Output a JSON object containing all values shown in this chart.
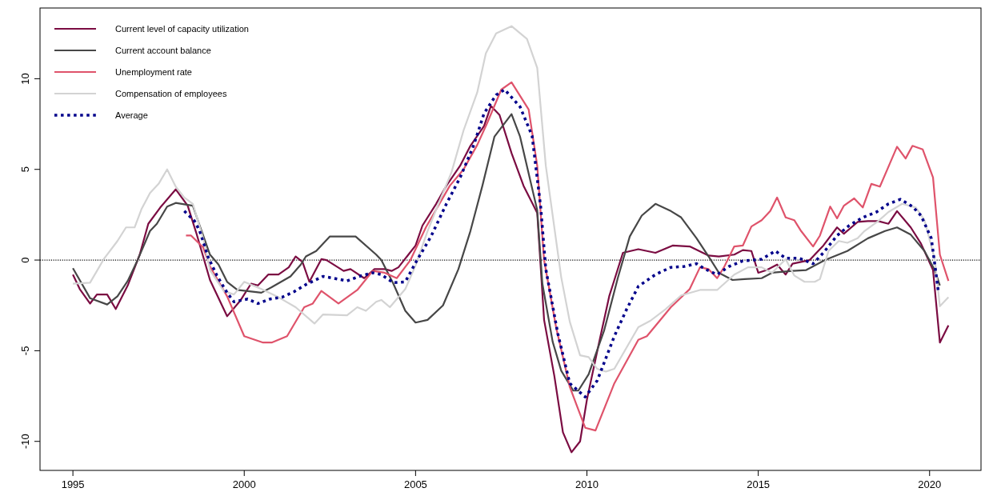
{
  "chart_data": {
    "type": "line",
    "xlim": [
      1994.04,
      2021.5
    ],
    "ylim": [
      -11.6,
      13.9
    ],
    "xticks": [
      1995,
      2000,
      2005,
      2010,
      2015,
      2020
    ],
    "yticks": [
      -10,
      -5,
      0,
      5,
      10
    ],
    "grid": false,
    "legend": "top left",
    "marker": "none",
    "ref_lines": [
      {
        "axis": "y",
        "value": 0,
        "color": "#000000",
        "line_style": "dotted"
      }
    ],
    "series": [
      {
        "name": "Current level of capacity utilization",
        "color": "#7b0c42",
        "line_style": "solid",
        "x": [
          1995.0,
          1995.2,
          1995.5,
          1995.7,
          1996.0,
          1996.25,
          1996.6,
          1996.95,
          1997.2,
          1997.55,
          1998.0,
          1998.35,
          1998.6,
          1999.0,
          1999.5,
          1999.9,
          2000.2,
          2000.4,
          2000.7,
          2001.0,
          2001.3,
          2001.5,
          2001.7,
          2001.9,
          2002.25,
          2002.4,
          2002.9,
          2003.1,
          2003.5,
          2003.8,
          2004.1,
          2004.3,
          2004.5,
          2005.0,
          2005.2,
          2005.6,
          2005.9,
          2006.3,
          2006.6,
          2007.0,
          2007.2,
          2007.45,
          2007.8,
          2008.15,
          2008.55,
          2008.75,
          2009.05,
          2009.3,
          2009.55,
          2009.8,
          2010.0,
          2010.35,
          2010.65,
          2011.05,
          2011.5,
          2012.0,
          2012.5,
          2013.0,
          2013.55,
          2013.85,
          2014.3,
          2014.55,
          2014.8,
          2015.0,
          2015.25,
          2015.55,
          2015.8,
          2016.0,
          2016.5,
          2016.9,
          2017.3,
          2017.5,
          2017.9,
          2018.2,
          2018.5,
          2018.8,
          2019.05,
          2019.45,
          2019.75,
          2020.1,
          2020.3,
          2020.55
        ],
        "values": [
          -0.8,
          -1.6,
          -2.4,
          -1.9,
          -1.9,
          -2.7,
          -1.4,
          0.3,
          2.0,
          2.9,
          3.9,
          3.0,
          1.5,
          -1.1,
          -3.1,
          -2.2,
          -1.3,
          -1.4,
          -0.8,
          -0.8,
          -0.4,
          0.2,
          -0.1,
          -1.2,
          0.05,
          0,
          -0.6,
          -0.5,
          -1.0,
          -0.5,
          -0.5,
          -0.6,
          -0.4,
          0.8,
          1.9,
          3.1,
          4.1,
          5.2,
          6.3,
          7.4,
          8.5,
          8.0,
          5.9,
          4.1,
          2.6,
          -3.3,
          -6.4,
          -9.5,
          -10.6,
          -10.0,
          -7.7,
          -4.6,
          -2.0,
          0.4,
          0.6,
          0.4,
          0.8,
          0.75,
          0.25,
          0.2,
          0.3,
          0.55,
          0.5,
          -0.7,
          -0.55,
          -0.25,
          -0.8,
          -0.2,
          0,
          0.8,
          1.8,
          1.45,
          2.1,
          2.15,
          2.15,
          2.0,
          2.7,
          1.8,
          0.9,
          -0.55,
          -4.55,
          -3.6
        ]
      },
      {
        "name": "Current account balance",
        "color": "#474747",
        "line_style": "solid",
        "x": [
          1995.0,
          1995.5,
          1996.0,
          1996.3,
          1996.6,
          1996.9,
          1997.25,
          1997.45,
          1997.75,
          1998.0,
          1998.5,
          1998.7,
          1999.0,
          1999.25,
          1999.5,
          1999.8,
          2000.5,
          2000.8,
          2001.35,
          2001.65,
          2001.8,
          2002.1,
          2002.5,
          2003.25,
          2003.85,
          2004.0,
          2004.35,
          2004.7,
          2005.0,
          2005.35,
          2005.8,
          2006.25,
          2006.6,
          2006.95,
          2007.3,
          2007.8,
          2008.05,
          2008.55,
          2008.7,
          2009.0,
          2009.25,
          2009.6,
          2009.75,
          2010.05,
          2010.5,
          2010.9,
          2011.25,
          2011.6,
          2012.0,
          2012.45,
          2012.75,
          2013.2,
          2013.55,
          2013.85,
          2014.25,
          2014.6,
          2015.1,
          2015.4,
          2016.0,
          2016.4,
          2016.95,
          2017.6,
          2018.2,
          2018.7,
          2019.05,
          2019.45,
          2019.85,
          2020.15,
          2020.3
        ],
        "values": [
          -0.45,
          -2.1,
          -2.45,
          -2.0,
          -1.15,
          0.05,
          1.6,
          2.0,
          2.95,
          3.15,
          3.0,
          1.9,
          0.3,
          -0.25,
          -1.2,
          -1.65,
          -1.8,
          -1.5,
          -0.9,
          -0.25,
          0.2,
          0.5,
          1.3,
          1.3,
          0.3,
          0,
          -1.3,
          -2.8,
          -3.45,
          -3.3,
          -2.5,
          -0.5,
          1.6,
          4.1,
          6.8,
          8.05,
          6.8,
          2.75,
          -1.3,
          -4.5,
          -6.1,
          -7.2,
          -7.2,
          -6.3,
          -3.9,
          -1.0,
          1.3,
          2.45,
          3.1,
          2.7,
          2.35,
          1.2,
          0.2,
          -0.7,
          -1.1,
          -1.05,
          -1.0,
          -0.7,
          -0.6,
          -0.55,
          0,
          0.5,
          1.2,
          1.6,
          1.8,
          1.4,
          0.5,
          -0.55,
          -1.4
        ]
      },
      {
        "name": "Unemployment rate",
        "color": "#df536b",
        "line_style": "solid",
        "x": [
          1998.3,
          1998.45,
          1998.8,
          1999.0,
          1999.5,
          2000.0,
          2000.55,
          2000.8,
          2001.25,
          2001.75,
          2002.0,
          2002.25,
          2002.75,
          2003.3,
          2003.75,
          2004.1,
          2004.45,
          2004.85,
          2005.3,
          2006.0,
          2006.4,
          2006.8,
          2007.1,
          2007.5,
          2007.8,
          2008.3,
          2008.55,
          2008.75,
          2009.1,
          2009.5,
          2009.95,
          2010.25,
          2010.8,
          2011.5,
          2011.75,
          2012.45,
          2013.0,
          2013.3,
          2013.55,
          2013.8,
          2014.0,
          2014.3,
          2014.55,
          2014.8,
          2015.1,
          2015.35,
          2015.55,
          2015.8,
          2016.05,
          2016.25,
          2016.6,
          2016.8,
          2017.1,
          2017.3,
          2017.5,
          2017.8,
          2018.05,
          2018.3,
          2018.55,
          2018.8,
          2019.05,
          2019.3,
          2019.5,
          2019.8,
          2020.1,
          2020.3,
          2020.55
        ],
        "values": [
          1.35,
          1.35,
          0.7,
          -0.35,
          -2.0,
          -4.2,
          -4.55,
          -4.55,
          -4.2,
          -2.6,
          -2.4,
          -1.7,
          -2.4,
          -1.65,
          -0.6,
          -0.7,
          -1.0,
          0,
          1.8,
          4.1,
          5.0,
          6.35,
          7.6,
          9.4,
          9.8,
          8.3,
          5.2,
          0,
          -3.7,
          -7.0,
          -9.25,
          -9.4,
          -6.8,
          -4.4,
          -4.2,
          -2.6,
          -1.6,
          -0.4,
          -0.5,
          -1.0,
          -0.4,
          0.75,
          0.8,
          1.85,
          2.2,
          2.7,
          3.45,
          2.35,
          2.2,
          1.6,
          0.75,
          1.35,
          2.95,
          2.3,
          3.0,
          3.4,
          2.9,
          4.2,
          4.05,
          5.15,
          6.25,
          5.6,
          6.3,
          6.1,
          4.55,
          0.3,
          -1.15
        ]
      },
      {
        "name": "Compensation of employees",
        "color": "#d3d3d3",
        "line_style": "solid",
        "x": [
          1995.0,
          1995.5,
          1995.9,
          1996.3,
          1996.55,
          1996.8,
          1997.0,
          1997.25,
          1997.5,
          1997.75,
          1998.0,
          1998.25,
          1998.5,
          1998.8,
          1999.0,
          1999.4,
          1999.7,
          2000.0,
          2000.5,
          2000.95,
          2001.5,
          2002.05,
          2002.3,
          2003.0,
          2003.3,
          2003.55,
          2003.85,
          2004.0,
          2004.25,
          2004.7,
          2005.0,
          2005.35,
          2005.7,
          2006.05,
          2006.4,
          2006.8,
          2007.05,
          2007.35,
          2007.8,
          2008.25,
          2008.55,
          2008.8,
          2009.25,
          2009.5,
          2009.8,
          2010.05,
          2010.3,
          2010.55,
          2010.8,
          2011.5,
          2011.85,
          2012.3,
          2012.75,
          2013.3,
          2013.8,
          2014.3,
          2014.7,
          2015.1,
          2015.4,
          2015.8,
          2016.05,
          2016.35,
          2016.65,
          2016.8,
          2017.05,
          2017.35,
          2017.6,
          2017.9,
          2018.1,
          2018.5,
          2018.8,
          2019.2,
          2019.6,
          2019.85,
          2020.15,
          2020.3,
          2020.55
        ],
        "values": [
          -1.3,
          -1.25,
          0.05,
          1.05,
          1.8,
          1.8,
          2.8,
          3.7,
          4.2,
          5.0,
          4.05,
          3.45,
          3.1,
          1.2,
          -0.55,
          -1.7,
          -1.9,
          -1.2,
          -1.6,
          -2.0,
          -2.6,
          -3.5,
          -3.0,
          -3.05,
          -2.6,
          -2.8,
          -2.3,
          -2.2,
          -2.6,
          -1.6,
          -0.3,
          1.6,
          3.25,
          4.85,
          7.15,
          9.25,
          11.4,
          12.5,
          12.9,
          12.2,
          10.6,
          5.2,
          -0.95,
          -3.4,
          -5.25,
          -5.35,
          -6.0,
          -6.15,
          -6.0,
          -3.7,
          -3.35,
          -2.7,
          -1.95,
          -1.65,
          -1.65,
          -0.8,
          -0.4,
          -0.4,
          -0.7,
          0.05,
          -0.85,
          -1.2,
          -1.2,
          -1.05,
          0.5,
          1.05,
          0.95,
          1.2,
          1.6,
          2.15,
          2.65,
          3.1,
          2.9,
          2.2,
          0.05,
          -2.55,
          -2.05
        ]
      },
      {
        "name": "Average",
        "color": "#00008b",
        "line_style": "dotted",
        "x": [
          1998.25,
          1998.55,
          1998.7,
          1998.95,
          1999.2,
          1999.5,
          1999.7,
          2000.1,
          2000.4,
          2000.75,
          2001.1,
          2001.45,
          2001.8,
          2002.3,
          2002.6,
          2003.0,
          2003.35,
          2003.75,
          2004.0,
          2004.35,
          2004.7,
          2005.0,
          2005.45,
          2005.9,
          2006.3,
          2006.7,
          2007.0,
          2007.35,
          2007.6,
          2008.05,
          2008.4,
          2008.65,
          2008.8,
          2009.15,
          2009.5,
          2009.95,
          2010.3,
          2010.8,
          2011.15,
          2011.5,
          2012.0,
          2012.45,
          2012.85,
          2013.2,
          2013.45,
          2013.8,
          2014.15,
          2014.55,
          2015.1,
          2015.5,
          2015.8,
          2016.2,
          2016.6,
          2016.9,
          2017.3,
          2017.65,
          2018.05,
          2018.45,
          2018.8,
          2019.15,
          2019.5,
          2019.75,
          2020.05,
          2020.25
        ],
        "values": [
          2.7,
          2.15,
          1.6,
          0.15,
          -0.85,
          -1.8,
          -2.3,
          -2.15,
          -2.4,
          -2.15,
          -2.05,
          -1.75,
          -1.35,
          -0.9,
          -1.0,
          -1.15,
          -0.9,
          -0.7,
          -0.8,
          -1.25,
          -1.2,
          -0.15,
          1.3,
          3.1,
          4.55,
          6.35,
          8.1,
          9.1,
          9.4,
          8.45,
          6.85,
          2.95,
          -0.5,
          -4.05,
          -6.8,
          -7.55,
          -6.65,
          -4.2,
          -2.75,
          -1.45,
          -0.8,
          -0.4,
          -0.35,
          -0.2,
          -0.5,
          -0.8,
          -0.35,
          -0.05,
          0.05,
          0.5,
          0.1,
          0.1,
          -0.2,
          0.4,
          1.35,
          1.9,
          2.35,
          2.65,
          3.1,
          3.35,
          2.95,
          2.45,
          1.2,
          -1.65
        ]
      }
    ]
  }
}
